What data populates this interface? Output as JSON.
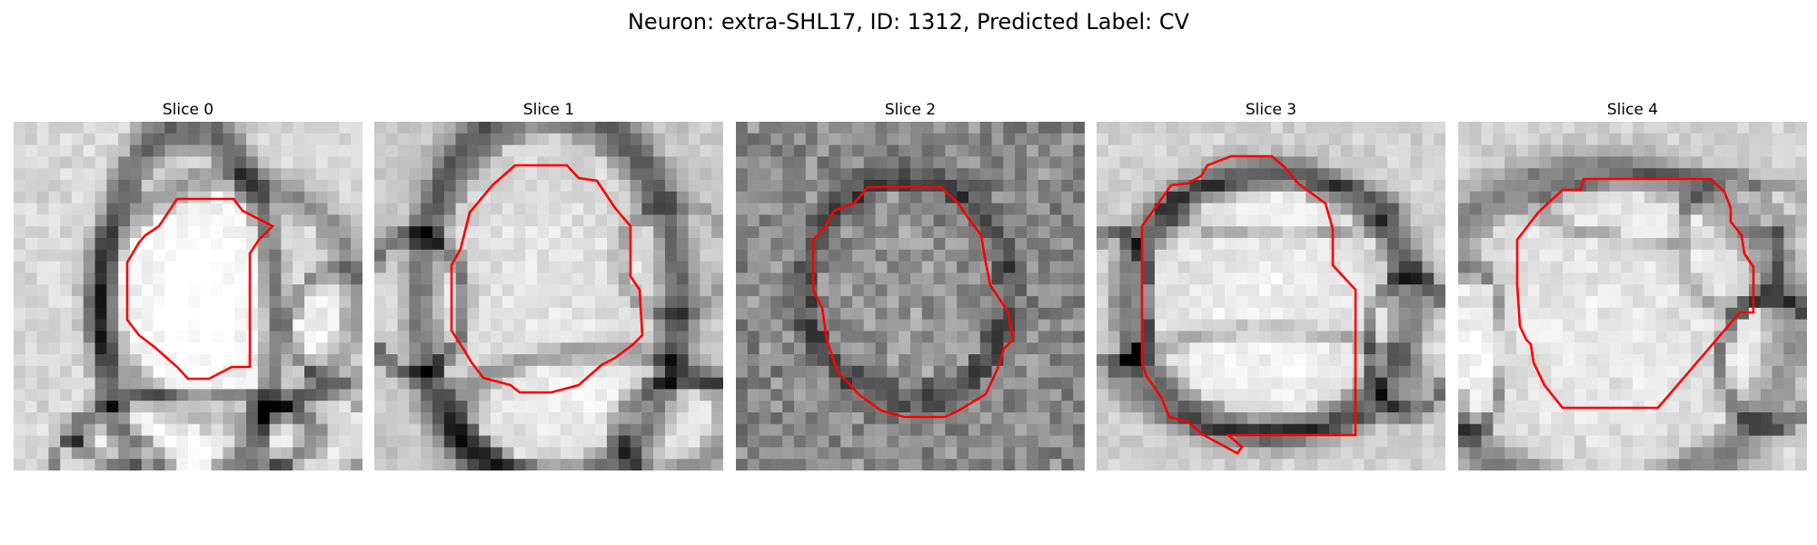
{
  "figure": {
    "title": "Neuron: extra-SHL17, ID: 1312, Predicted Label: CV",
    "overlay_color": "#ff0000",
    "colormap": "gray",
    "slices": [
      {
        "label": "Slice 0"
      },
      {
        "label": "Slice 1"
      },
      {
        "label": "Slice 2"
      },
      {
        "label": "Slice 3"
      },
      {
        "label": "Slice 4"
      }
    ]
  }
}
